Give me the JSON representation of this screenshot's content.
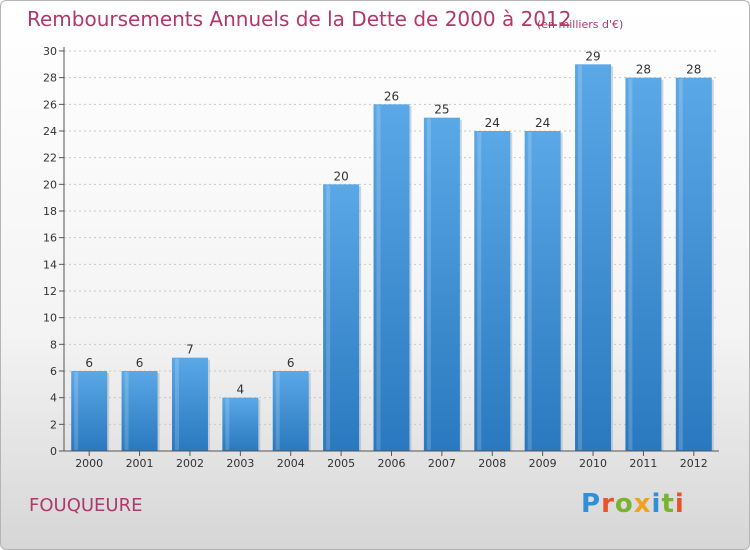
{
  "title": "Remboursements Annuels de la Dette de 2000 à 2012",
  "subtitle": "(en milliers d'€)",
  "commune": "FOUQUEURE",
  "logo": {
    "text": "Proxiti",
    "letters": [
      {
        "char": "P",
        "color": "#2f8fd8"
      },
      {
        "char": "r",
        "color": "#e8542a"
      },
      {
        "char": "o",
        "color": "#7ab42f"
      },
      {
        "char": "x",
        "color": "#f0a21e"
      },
      {
        "char": "i",
        "color": "#2f8fd8"
      },
      {
        "char": "t",
        "color": "#7ab42f"
      },
      {
        "char": "i",
        "color": "#e8542a"
      }
    ]
  },
  "chart_data": {
    "type": "bar",
    "categories": [
      "2000",
      "2001",
      "2002",
      "2003",
      "2004",
      "2005",
      "2006",
      "2007",
      "2008",
      "2009",
      "2010",
      "2011",
      "2012"
    ],
    "values": [
      6,
      6,
      7,
      4,
      6,
      20,
      26,
      25,
      24,
      24,
      29,
      28,
      28
    ],
    "ylim": [
      0,
      30
    ],
    "yticks": [
      0,
      2,
      4,
      6,
      8,
      10,
      12,
      14,
      16,
      18,
      20,
      22,
      24,
      26,
      28,
      30
    ],
    "grid": true,
    "bar_color": "#3d8fd6",
    "title_color": "#b0386a"
  }
}
